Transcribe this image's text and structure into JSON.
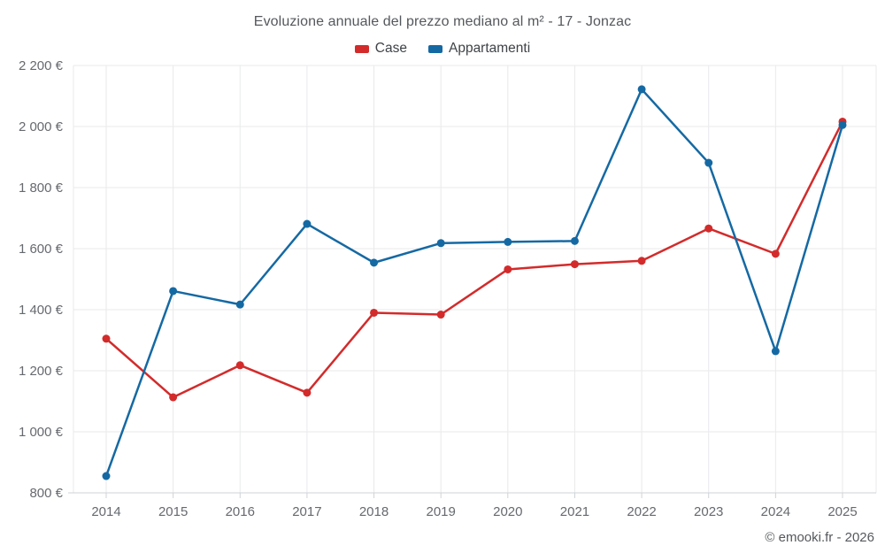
{
  "chart_data": {
    "type": "line",
    "title": "Evoluzione annuale del prezzo mediano al m² - 17 - Jonzac",
    "categories": [
      "2014",
      "2015",
      "2016",
      "2017",
      "2018",
      "2019",
      "2020",
      "2021",
      "2022",
      "2023",
      "2024",
      "2025"
    ],
    "series": [
      {
        "name": "Case",
        "color": "#d32b2b",
        "values": [
          1305,
          1113,
          1218,
          1128,
          1390,
          1384,
          1532,
          1549,
          1560,
          1666,
          1583,
          2016
        ]
      },
      {
        "name": "Appartamenti",
        "color": "#1569a3",
        "values": [
          855,
          1461,
          1417,
          1681,
          1554,
          1618,
          1622,
          1625,
          2122,
          1881,
          1264,
          2005
        ]
      }
    ],
    "xlabel": "",
    "ylabel": "",
    "ylim": [
      800,
      2200
    ],
    "y_ticks": [
      800,
      1000,
      1200,
      1400,
      1600,
      1800,
      2000,
      2200
    ],
    "y_tick_labels": [
      "800 €",
      "1 000 €",
      "1 200 €",
      "1 400 €",
      "1 600 €",
      "1 800 €",
      "2 000 €",
      "2 200 €"
    ],
    "grid": true,
    "legend_position": "top"
  },
  "footer": {
    "credit": "© emooki.fr - 2026"
  },
  "colors": {
    "background": "#ffffff",
    "grid": "#e9eaeb",
    "axis": "#cfd3d6",
    "tick_label": "#66696e",
    "title_text": "#55585c",
    "legend_text": "#3f4347",
    "footer_text": "#55585c"
  }
}
